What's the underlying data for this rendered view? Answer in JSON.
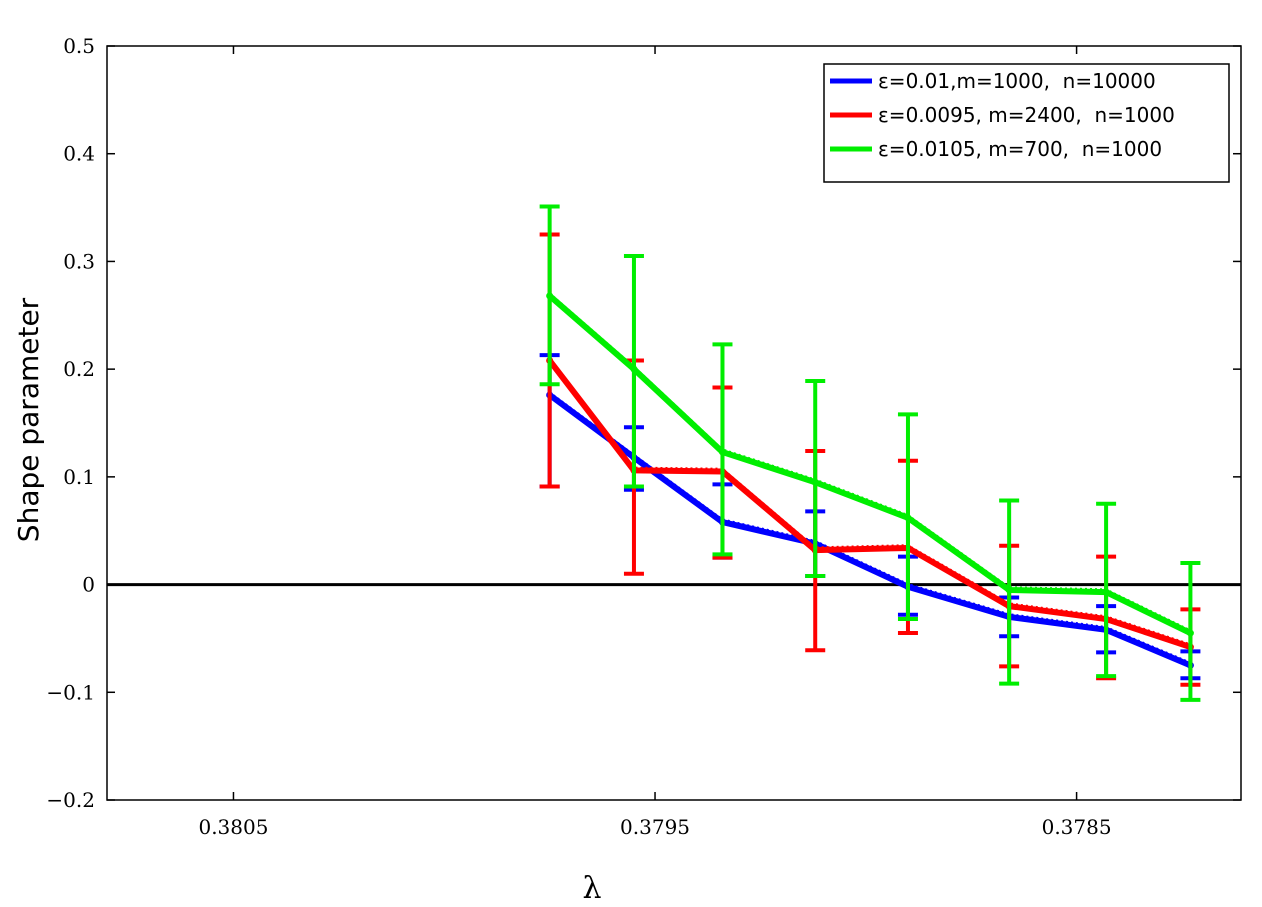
{
  "chart_data": {
    "type": "line",
    "title": "",
    "xlabel": "λ",
    "ylabel": "Shape parameter",
    "xlim": [
      0.3808,
      0.37811
    ],
    "ylim": [
      -0.2,
      0.5
    ],
    "x_reversed": true,
    "xticks": [
      0.3805,
      0.3795,
      0.3785
    ],
    "xtick_labels": [
      "0.3805",
      "0.3795",
      "0.3785"
    ],
    "yticks": [
      -0.2,
      -0.1,
      0,
      0.1,
      0.2,
      0.3,
      0.4,
      0.5
    ],
    "ytick_labels": [
      "−0.2",
      "−0.1",
      "0",
      "0.1",
      "0.2",
      "0.3",
      "0.4",
      "0.5"
    ],
    "reference_line": 0,
    "grid": false,
    "legend_position": "top-right",
    "series": [
      {
        "name": "ε=0.01,m=1000,  n=10000",
        "color": "#0000ff",
        "x": [
          0.37975,
          0.37955,
          0.37934,
          0.37912,
          0.3789,
          0.37866,
          0.37843,
          0.37823
        ],
        "y": [
          0.176,
          0.118,
          0.058,
          0.038,
          -0.002,
          -0.03,
          -0.042,
          -0.075
        ],
        "err_low": [
          0.091,
          0.088,
          0.025,
          0.008,
          -0.028,
          -0.048,
          -0.063,
          -0.087
        ],
        "err_high": [
          0.213,
          0.146,
          0.093,
          0.068,
          0.026,
          -0.012,
          -0.02,
          -0.062
        ]
      },
      {
        "name": "ε=0.0095, m=2400,  n=1000",
        "color": "#ff0000",
        "x": [
          0.37975,
          0.37955,
          0.37934,
          0.37912,
          0.3789,
          0.37866,
          0.37843,
          0.37823
        ],
        "y": [
          0.208,
          0.106,
          0.105,
          0.032,
          0.034,
          -0.02,
          -0.032,
          -0.058
        ],
        "err_low": [
          0.091,
          0.01,
          0.025,
          -0.061,
          -0.045,
          -0.076,
          -0.087,
          -0.093
        ],
        "err_high": [
          0.325,
          0.208,
          0.183,
          0.124,
          0.115,
          0.036,
          0.026,
          -0.023
        ]
      },
      {
        "name": "ε=0.0105, m=700,  n=1000",
        "color": "#00ee00",
        "x": [
          0.37975,
          0.37955,
          0.37934,
          0.37912,
          0.3789,
          0.37866,
          0.37843,
          0.37823
        ],
        "y": [
          0.268,
          0.2,
          0.123,
          0.095,
          0.062,
          -0.005,
          -0.007,
          -0.045
        ],
        "err_low": [
          0.186,
          0.091,
          0.028,
          0.008,
          -0.032,
          -0.092,
          -0.085,
          -0.107
        ],
        "err_high": [
          0.351,
          0.305,
          0.223,
          0.189,
          0.158,
          0.078,
          0.075,
          0.02
        ]
      }
    ]
  }
}
